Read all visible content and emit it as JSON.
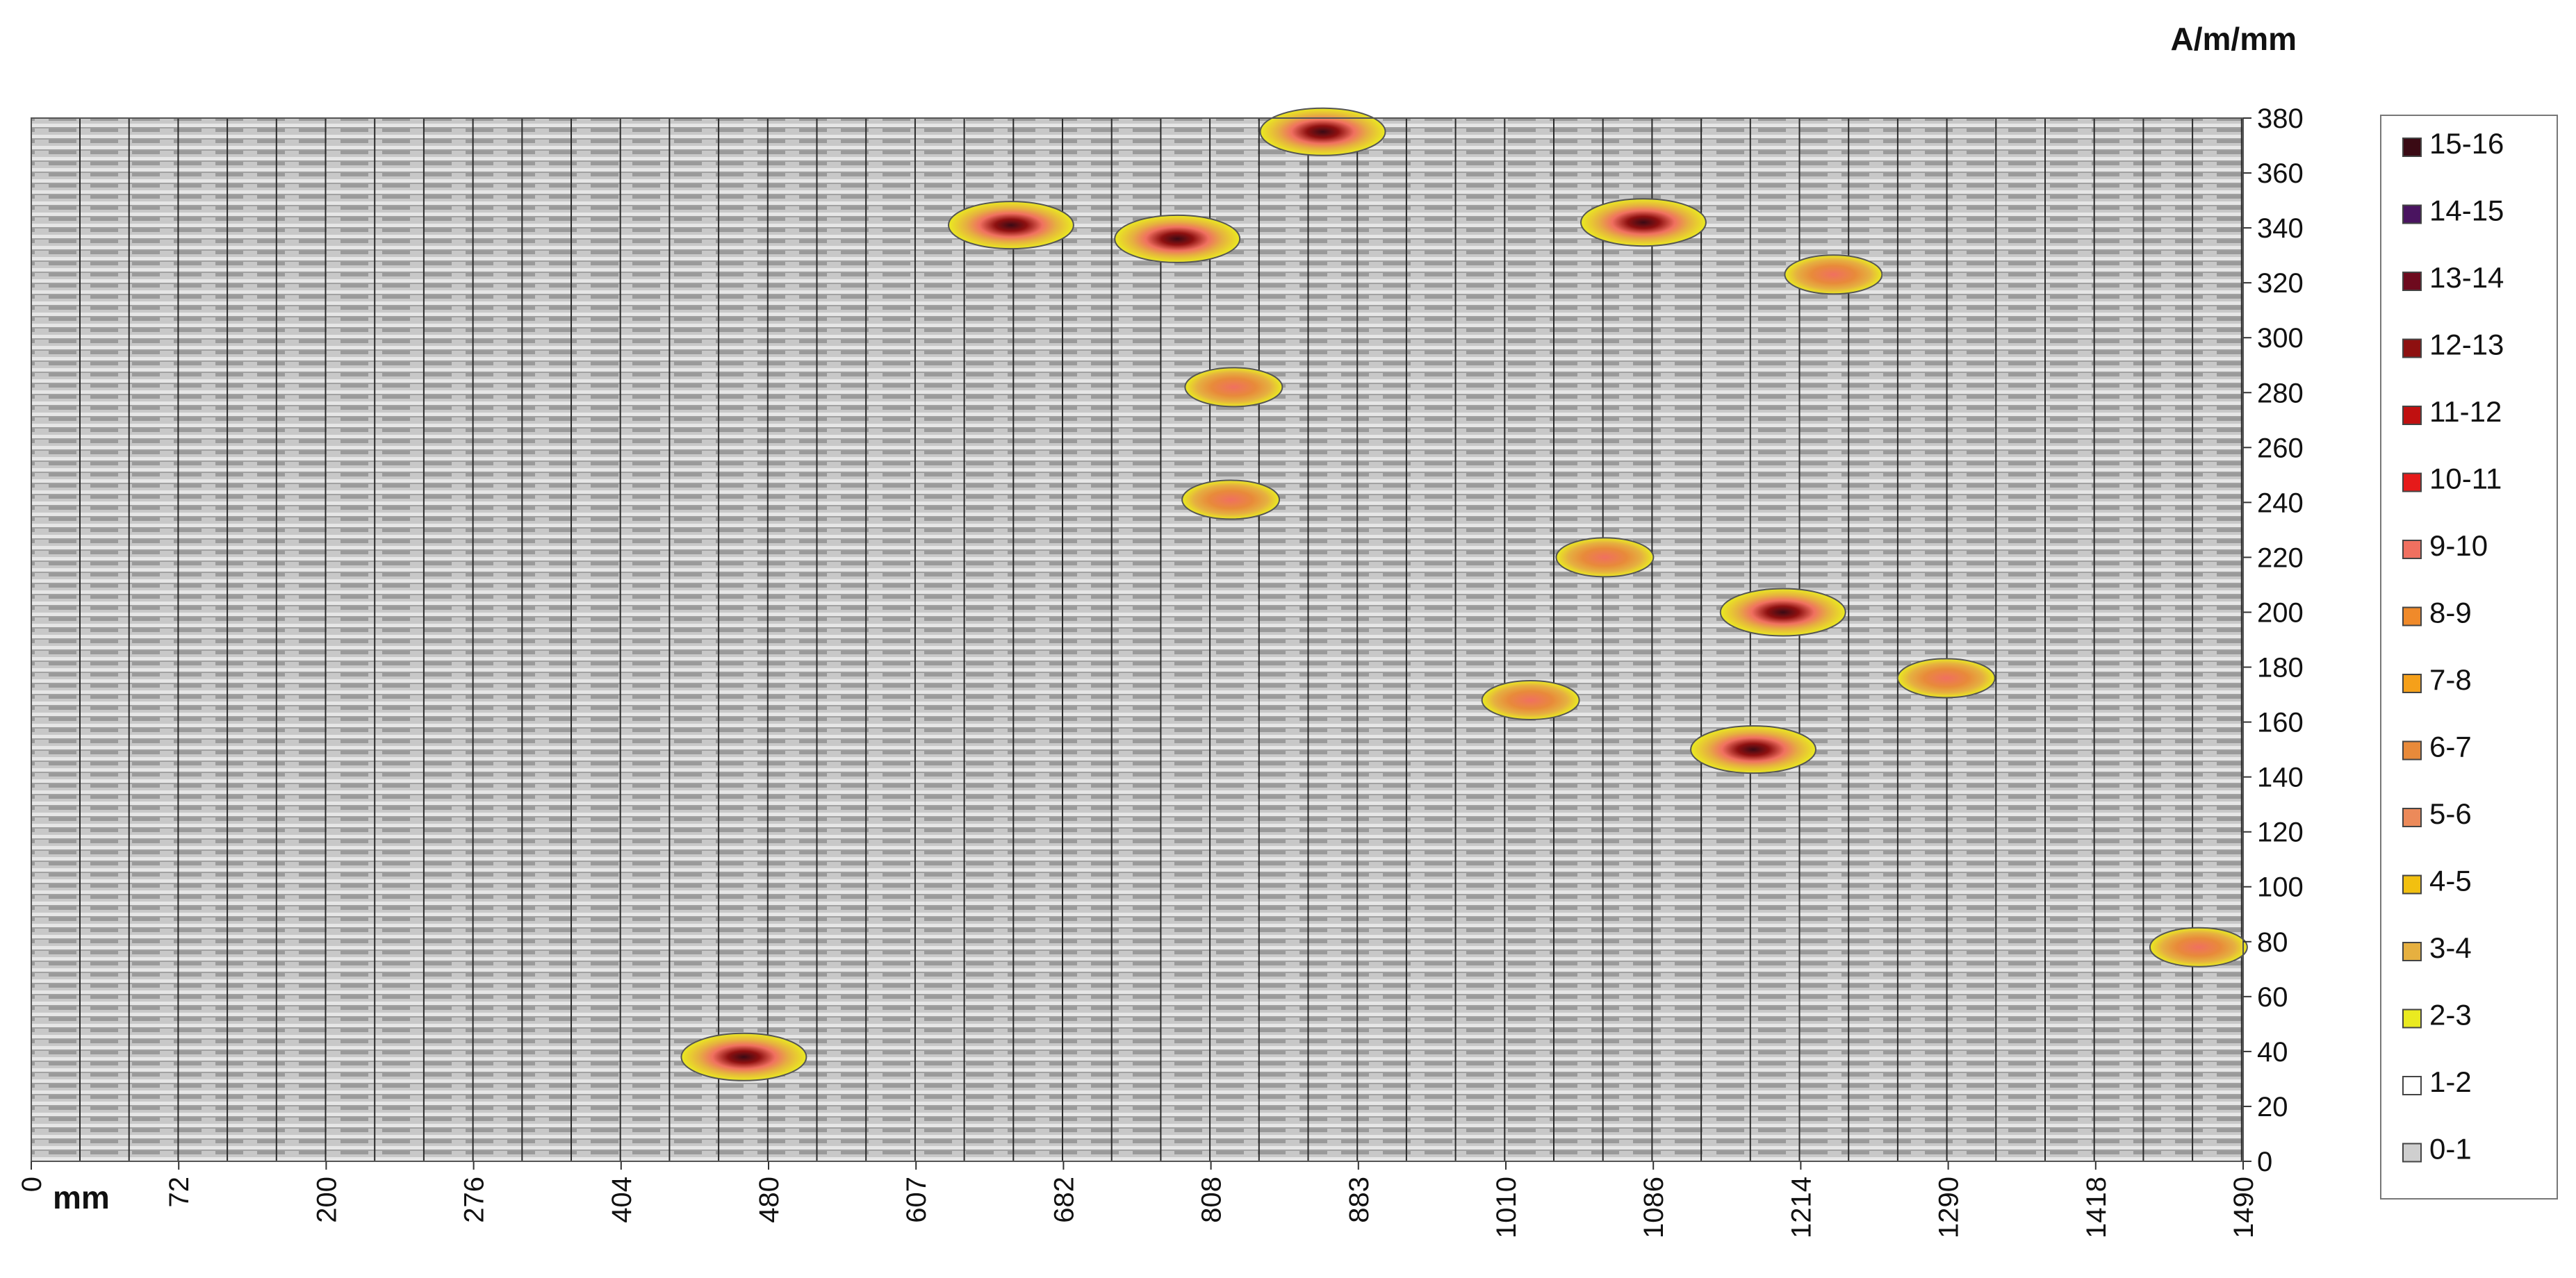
{
  "chart_data": {
    "type": "heatmap",
    "title": "",
    "unit_label": "A/m/mm",
    "xlabel": "mm",
    "ylabel": "",
    "x_ticks": [
      "0",
      "72",
      "200",
      "276",
      "404",
      "480",
      "607",
      "682",
      "808",
      "883",
      "1010",
      "1086",
      "1214",
      "1290",
      "1418",
      "1490"
    ],
    "y_ticks": [
      0,
      20,
      40,
      60,
      80,
      100,
      120,
      140,
      160,
      180,
      200,
      220,
      240,
      260,
      280,
      300,
      320,
      340,
      360,
      380
    ],
    "ylim": [
      0,
      380
    ],
    "grid": "vertical lines at each measurement column",
    "legend_position": "right",
    "legend": [
      {
        "label": "15-16",
        "color": "#3a0a14"
      },
      {
        "label": "14-15",
        "color": "#4a1460"
      },
      {
        "label": "13-14",
        "color": "#6e0a1e"
      },
      {
        "label": "12-13",
        "color": "#8e1010"
      },
      {
        "label": "11-12",
        "color": "#c01010"
      },
      {
        "label": "10-11",
        "color": "#e61a1a"
      },
      {
        "label": "9-10",
        "color": "#f07060"
      },
      {
        "label": "8-9",
        "color": "#f08a2a"
      },
      {
        "label": "7-8",
        "color": "#f5a01a"
      },
      {
        "label": "6-7",
        "color": "#e88a3a"
      },
      {
        "label": "5-6",
        "color": "#ec8a5a"
      },
      {
        "label": "4-5",
        "color": "#f2c010"
      },
      {
        "label": "3-4",
        "color": "#e6b040"
      },
      {
        "label": "2-3",
        "color": "#eaea20"
      },
      {
        "label": "1-2",
        "color": "#ffffff"
      },
      {
        "label": "0-1",
        "color": "#cfcfcf"
      }
    ],
    "hotspots": [
      {
        "x": 660,
        "y": 341,
        "peak": "13-14"
      },
      {
        "x": 772,
        "y": 336,
        "peak": "15-16"
      },
      {
        "x": 870,
        "y": 375,
        "peak": "12-13"
      },
      {
        "x": 1086,
        "y": 342,
        "peak": "12-13"
      },
      {
        "x": 1214,
        "y": 323,
        "peak": "9-10"
      },
      {
        "x": 810,
        "y": 282,
        "peak": "9-10"
      },
      {
        "x": 808,
        "y": 241,
        "peak": "9-10"
      },
      {
        "x": 1180,
        "y": 200,
        "peak": "11-12"
      },
      {
        "x": 1290,
        "y": 176,
        "peak": "9-10"
      },
      {
        "x": 1160,
        "y": 150,
        "peak": "10-11"
      },
      {
        "x": 480,
        "y": 38,
        "peak": "12-13"
      },
      {
        "x": 1460,
        "y": 78,
        "peak": "6-7"
      },
      {
        "x": 1060,
        "y": 220,
        "peak": "8-9"
      },
      {
        "x": 1010,
        "y": 168,
        "peak": "8-9"
      }
    ]
  }
}
